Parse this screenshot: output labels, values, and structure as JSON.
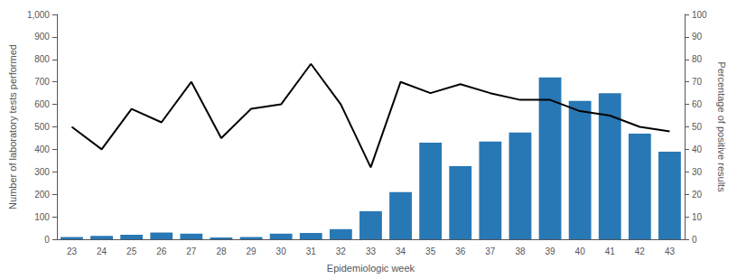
{
  "chart_data": {
    "type": "bar",
    "xlabel": "Epidemiologic week",
    "ylabel": "Number of laboratory tests performed",
    "y2label": "Percentage of positive results",
    "categories": [
      "23",
      "24",
      "25",
      "26",
      "27",
      "28",
      "29",
      "30",
      "31",
      "32",
      "33",
      "34",
      "35",
      "36",
      "37",
      "38",
      "39",
      "40",
      "41",
      "42",
      "43"
    ],
    "series": [
      {
        "type": "bar",
        "color": "#2878b5",
        "values": [
          10,
          15,
          20,
          30,
          25,
          8,
          10,
          25,
          28,
          45,
          125,
          210,
          430,
          325,
          435,
          475,
          720,
          615,
          650,
          470,
          390
        ]
      },
      {
        "type": "line",
        "color": "#000000",
        "axis": "y2",
        "values": [
          50,
          40,
          58,
          52,
          70,
          45,
          58,
          60,
          78,
          60,
          32,
          70,
          65,
          69,
          65,
          62,
          62,
          57,
          55,
          50,
          48
        ]
      }
    ],
    "ylim": [
      0,
      1000
    ],
    "yticks": [
      0,
      100,
      200,
      300,
      400,
      500,
      600,
      700,
      800,
      900,
      1000
    ],
    "y2lim": [
      0,
      100
    ],
    "y2ticks": [
      0,
      10,
      20,
      30,
      40,
      50,
      60,
      70,
      80,
      90,
      100
    ],
    "grid": false
  }
}
